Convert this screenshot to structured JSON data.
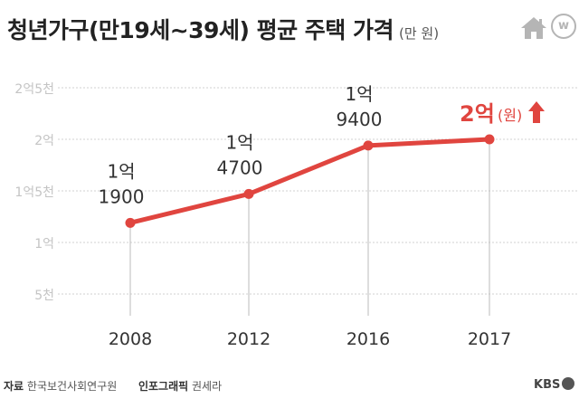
{
  "header": {
    "title": "청년가구(만19세~39세) 평균 주택 가격",
    "unit": "(만 원)"
  },
  "icons": {
    "home": "home-icon",
    "logo": "w-logo-icon",
    "logo_letter": "w"
  },
  "chart_data": {
    "type": "line",
    "title": "청년가구(만19세~39세) 평균 주택 가격",
    "ylabel": "만 원",
    "ylim": [
      0,
      25000
    ],
    "categories": [
      "2008",
      "2012",
      "2016",
      "2017"
    ],
    "values": [
      11900,
      14700,
      19400,
      20000
    ],
    "ytick_values": [
      5000,
      10000,
      15000,
      20000,
      25000
    ],
    "ytick_labels": [
      "5천",
      "1억",
      "1억5천",
      "2억",
      "2억5천"
    ],
    "data_labels": [
      {
        "line1": "1억",
        "line2": "1900"
      },
      {
        "line1": "1억",
        "line2": "4700"
      },
      {
        "line1": "1억",
        "line2": "9400"
      }
    ],
    "highlight_label": {
      "value": "2억",
      "unit": "(원)"
    },
    "colors": {
      "line": "#e0453f",
      "grid": "#d2d2d2",
      "highlight": "#e0453f",
      "axis_text": "#555555"
    }
  },
  "footer": {
    "source_label": "자료",
    "source_value": "한국보건사회연구원",
    "graphic_label": "인포그래픽",
    "graphic_value": "권세라",
    "brand": "KBS"
  }
}
